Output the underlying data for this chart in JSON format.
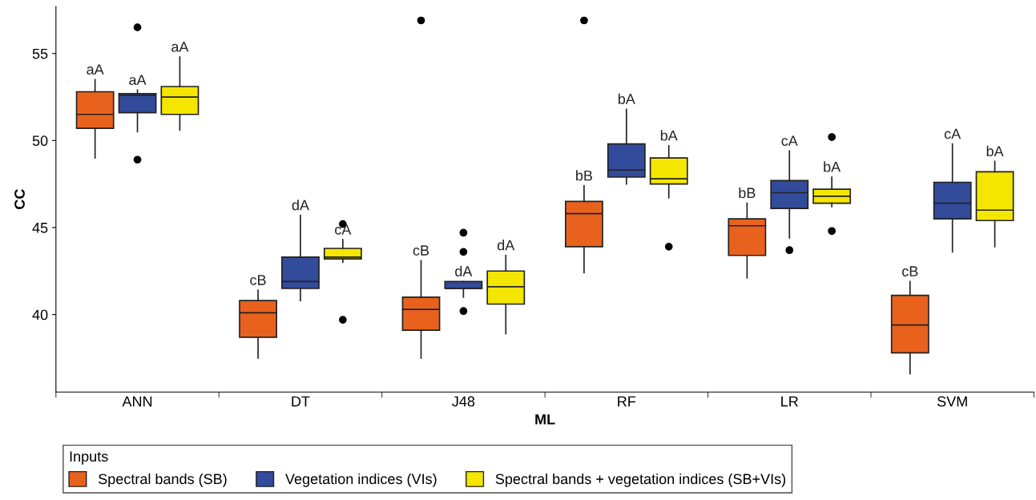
{
  "chart_data": {
    "type": "box",
    "xlabel": "ML",
    "ylabel": "CC",
    "legend_title": "Inputs",
    "legend": "bottom",
    "grid": false,
    "categories": [
      "ANN",
      "DT",
      "J48",
      "RF",
      "LR",
      "SVM"
    ],
    "ylim": [
      35.55,
      57.7
    ],
    "yticks": [
      40,
      45,
      50,
      55
    ],
    "series": [
      {
        "name": "Spectral bands (SB)",
        "color": "#e8621e",
        "value_labels": [
          "aA",
          "cB",
          "cB",
          "bB",
          "bB",
          "cB"
        ],
        "boxes": [
          {
            "low": 49.0,
            "q1": 50.7,
            "median": 51.5,
            "q3": 52.8,
            "high": 53.5
          },
          {
            "low": 37.5,
            "q1": 38.7,
            "median": 40.1,
            "q3": 40.8,
            "high": 41.4
          },
          {
            "low": 37.5,
            "q1": 39.1,
            "median": 40.3,
            "q3": 41.0,
            "high": 43.1,
            "outliers": [
              56.9
            ]
          },
          {
            "low": 42.4,
            "q1": 43.9,
            "median": 45.8,
            "q3": 46.5,
            "high": 47.4,
            "outliers": [
              56.9
            ]
          },
          {
            "low": 42.1,
            "q1": 43.4,
            "median": 45.1,
            "q3": 45.5,
            "high": 46.4
          },
          {
            "low": 36.6,
            "q1": 37.8,
            "median": 39.4,
            "q3": 41.1,
            "high": 41.9
          }
        ]
      },
      {
        "name": "Vegetation indices (VIs)",
        "color": "#324b9b",
        "value_labels": [
          "aA",
          "dA",
          "dA",
          "bA",
          "cA",
          "cA"
        ],
        "boxes": [
          {
            "low": 50.5,
            "q1": 51.6,
            "median": 52.6,
            "q3": 52.7,
            "high": 52.9,
            "outliers": [
              56.5,
              48.9
            ]
          },
          {
            "low": 40.8,
            "q1": 41.5,
            "median": 41.9,
            "q3": 43.3,
            "high": 45.7
          },
          {
            "low": 41.0,
            "q1": 41.5,
            "median": 41.5,
            "q3": 41.9,
            "high": 41.9,
            "outliers": [
              44.7,
              43.6,
              40.2
            ]
          },
          {
            "low": 47.5,
            "q1": 47.9,
            "median": 48.3,
            "q3": 49.8,
            "high": 51.8
          },
          {
            "low": 44.4,
            "q1": 46.1,
            "median": 47.0,
            "q3": 47.7,
            "high": 49.4,
            "outliers": [
              43.7
            ]
          },
          {
            "low": 43.6,
            "q1": 45.5,
            "median": 46.4,
            "q3": 47.6,
            "high": 49.8
          }
        ]
      },
      {
        "name": "Spectral bands + vegetation indices (SB+VIs)",
        "color": "#f5e600",
        "value_labels": [
          "aA",
          "cA",
          "dA",
          "bA",
          "bA",
          "bA"
        ],
        "boxes": [
          {
            "low": 50.6,
            "q1": 51.5,
            "median": 52.5,
            "q3": 53.1,
            "high": 54.8
          },
          {
            "low": 43.0,
            "q1": 43.2,
            "median": 43.3,
            "q3": 43.8,
            "high": 44.3,
            "outliers": [
              45.2,
              39.7
            ]
          },
          {
            "low": 38.9,
            "q1": 40.6,
            "median": 41.6,
            "q3": 42.5,
            "high": 43.4
          },
          {
            "low": 46.7,
            "q1": 47.5,
            "median": 47.8,
            "q3": 49.0,
            "high": 49.7,
            "outliers": [
              43.9
            ]
          },
          {
            "low": 46.2,
            "q1": 46.4,
            "median": 46.8,
            "q3": 47.2,
            "high": 47.9,
            "outliers": [
              50.2,
              44.8
            ]
          },
          {
            "low": 43.9,
            "q1": 45.4,
            "median": 46.0,
            "q3": 48.2,
            "high": 48.8
          }
        ]
      }
    ]
  }
}
